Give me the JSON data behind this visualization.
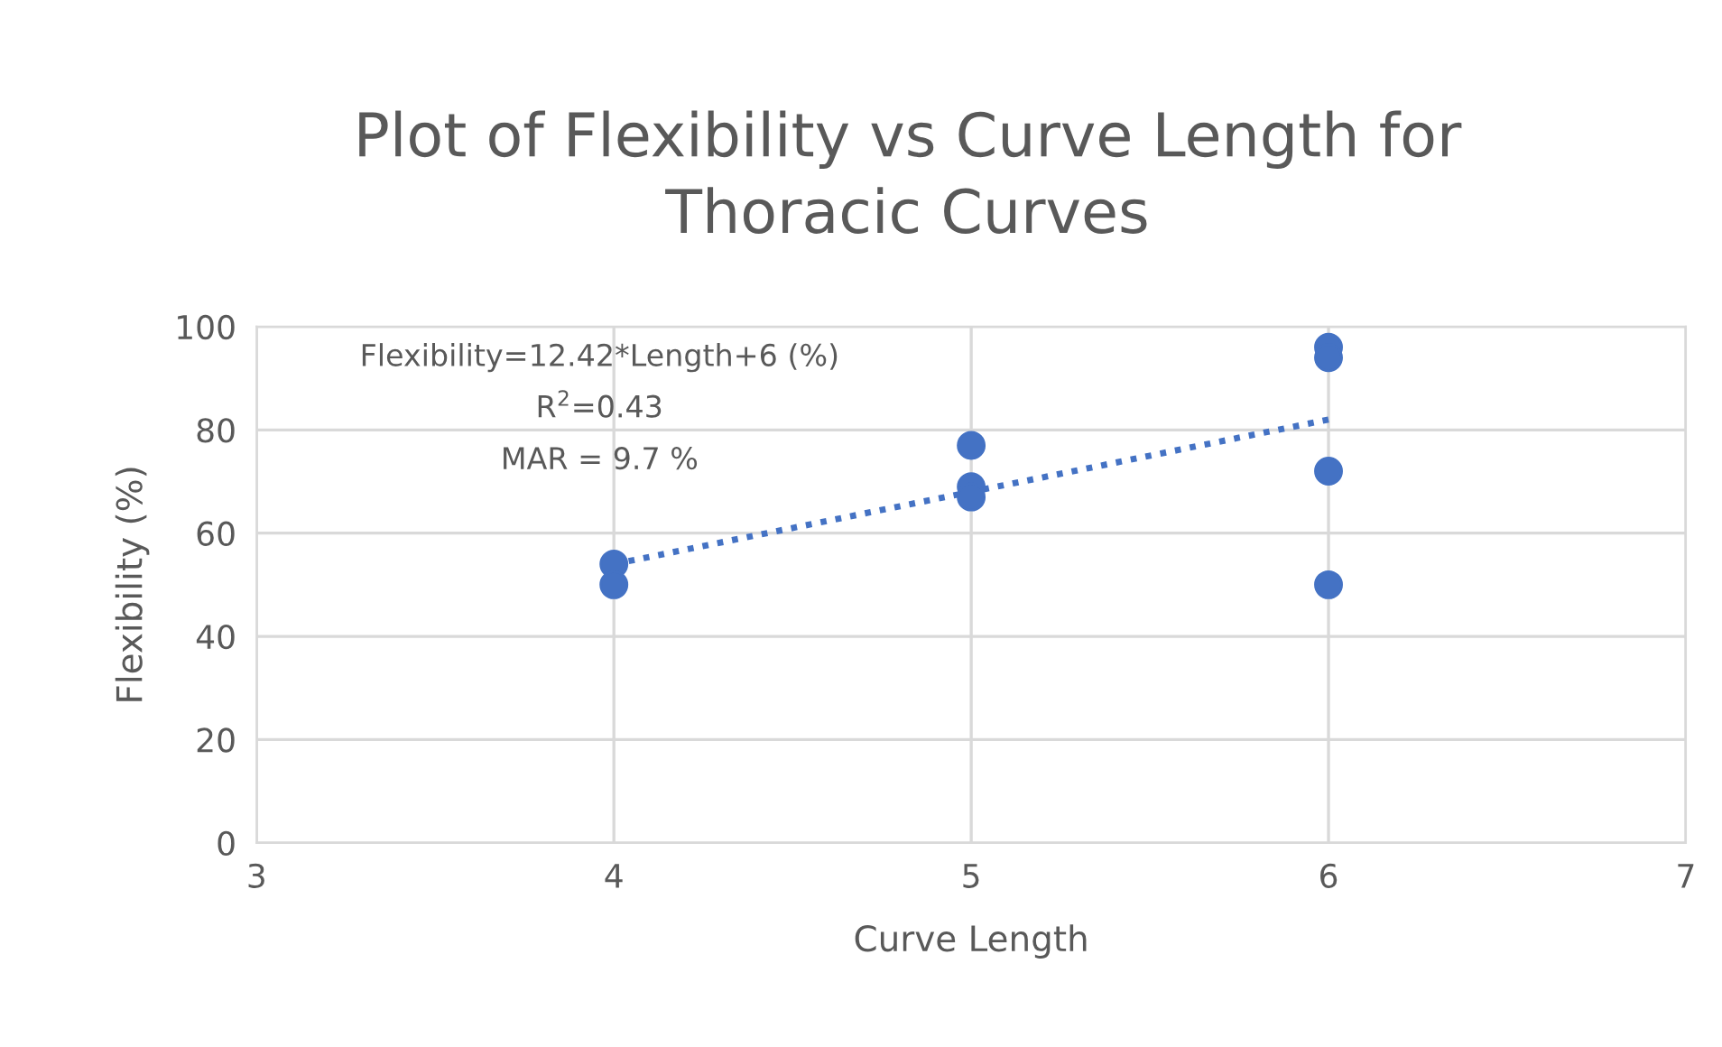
{
  "chart_data": {
    "type": "scatter",
    "title": "Plot of Flexibility vs Curve Length for\nThoracic Curves",
    "xlabel": "Curve Length",
    "ylabel": "Flexibility (%)",
    "series": [
      {
        "color": "#4472c4",
        "marker": "circle",
        "x": [
          4,
          4,
          5,
          5,
          5,
          6,
          6,
          6,
          6
        ],
        "values": [
          54,
          50,
          77,
          69,
          67,
          96,
          94,
          72,
          50
        ]
      },
      {
        "type": "line",
        "color": "#4472c4",
        "line_style": "dotted",
        "marker": "none",
        "x": [
          4,
          6
        ],
        "values": [
          54,
          82
        ]
      }
    ],
    "annotations": [
      "Flexibility=12.42*Length+6 (%)",
      "R$^{2}$=0.43",
      "MAR = 9.7 %"
    ],
    "xlim": [
      3,
      7
    ],
    "xticks": [
      3,
      4,
      5,
      6,
      7
    ],
    "ylim": [
      0,
      100
    ],
    "yticks": [
      0,
      20,
      40,
      60,
      80,
      100
    ],
    "grid": true,
    "legend": false
  }
}
